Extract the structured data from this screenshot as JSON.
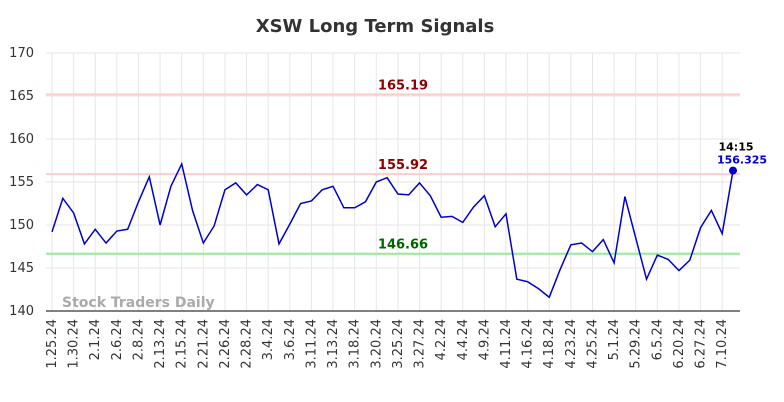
{
  "chart_data": {
    "type": "line",
    "title": "XSW Long Term Signals",
    "categories": [
      "1.25.24",
      null,
      "1.30.24",
      null,
      "2.1.24",
      null,
      "2.6.24",
      null,
      "2.8.24",
      null,
      "2.13.24",
      null,
      "2.15.24",
      null,
      "2.21.24",
      null,
      "2.26.24",
      null,
      "2.28.24",
      null,
      "3.4.24",
      null,
      "3.6.24",
      null,
      "3.11.24",
      null,
      "3.13.24",
      null,
      "3.18.24",
      null,
      "3.20.24",
      null,
      "3.25.24",
      null,
      "3.27.24",
      null,
      "4.2.24",
      null,
      "4.4.24",
      null,
      "4.9.24",
      null,
      "4.11.24",
      null,
      "4.16.24",
      null,
      "4.18.24",
      null,
      "4.23.24",
      null,
      "4.25.24",
      null,
      "5.1.24",
      null,
      "5.29.24",
      null,
      "6.5.24",
      null,
      "6.20.24",
      null,
      "6.27.24",
      null,
      "7.10.24",
      null
    ],
    "values": [
      149.2,
      153.1,
      151.4,
      147.8,
      149.5,
      147.9,
      149.3,
      149.5,
      152.7,
      155.6,
      150.0,
      154.5,
      157.1,
      151.7,
      147.9,
      149.9,
      154.1,
      154.9,
      153.5,
      154.7,
      154.1,
      147.8,
      150.1,
      152.5,
      152.8,
      154.1,
      154.5,
      152.0,
      152.0,
      152.7,
      155.0,
      155.5,
      153.6,
      153.5,
      154.9,
      153.4,
      150.9,
      151.0,
      150.3,
      152.1,
      153.4,
      149.8,
      151.3,
      143.7,
      143.4,
      142.6,
      141.6,
      144.8,
      147.7,
      147.9,
      146.9,
      148.3,
      145.6,
      153.3,
      148.5,
      143.7,
      146.5,
      146.0,
      144.7,
      145.9,
      149.7,
      151.7,
      149.0,
      156.325
    ],
    "color": "#0000cc",
    "ylim": [
      140,
      170
    ],
    "yticks": [
      140,
      145,
      150,
      155,
      160,
      165,
      170
    ],
    "grid": true,
    "reference_lines": [
      {
        "value": 165.19,
        "color": "#ffcccc",
        "label_color": "#8b0000"
      },
      {
        "value": 155.92,
        "color": "#ffcccc",
        "label_color": "#8b0000"
      },
      {
        "value": 146.66,
        "color": "#90ee90",
        "label_color": "#006400"
      }
    ],
    "last_point_time": "14:15",
    "watermark": "Stock Traders Daily"
  }
}
